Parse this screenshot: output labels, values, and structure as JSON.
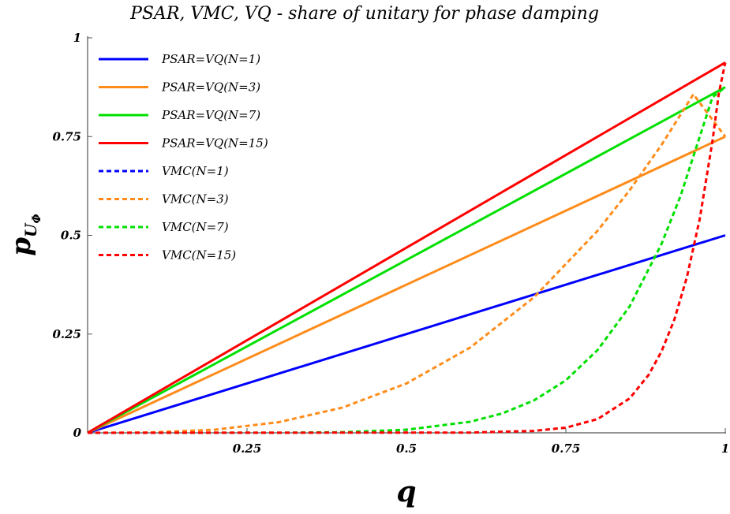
{
  "chart_data": {
    "type": "line",
    "title": "PSAR, VMC, VQ - share of unitary for phase damping",
    "xlabel": "q",
    "ylabel": "p",
    "ylabel_subscript": "U",
    "ylabel_subsubscript": "Φ",
    "xlim": [
      0,
      1
    ],
    "ylim": [
      0,
      1
    ],
    "x_ticks": [
      {
        "value": 0.25,
        "label": "0.25"
      },
      {
        "value": 0.5,
        "label": "0.5"
      },
      {
        "value": 0.75,
        "label": "0.75"
      },
      {
        "value": 1,
        "label": "1"
      }
    ],
    "y_ticks": [
      {
        "value": 0,
        "label": "0"
      },
      {
        "value": 0.25,
        "label": "0.25"
      },
      {
        "value": 0.5,
        "label": "0.5"
      },
      {
        "value": 0.75,
        "label": "0.75"
      },
      {
        "value": 1,
        "label": "1"
      }
    ],
    "legend_position": "top-left",
    "grid": false,
    "series": [
      {
        "name": "PSAR=VQ(N=1)",
        "style": "solid",
        "color": "#0000ff",
        "x": [
          0,
          1
        ],
        "y": [
          0,
          0.5
        ]
      },
      {
        "name": "PSAR=VQ(N=3)",
        "style": "solid",
        "color": "#ff8c1a",
        "x": [
          0,
          1
        ],
        "y": [
          0,
          0.75
        ]
      },
      {
        "name": "PSAR=VQ(N=7)",
        "style": "solid",
        "color": "#00e000",
        "x": [
          0,
          1
        ],
        "y": [
          0,
          0.875
        ]
      },
      {
        "name": "PSAR=VQ(N=15)",
        "style": "solid",
        "color": "#ff0000",
        "x": [
          0,
          1
        ],
        "y": [
          0,
          0.9375
        ]
      },
      {
        "name": "VMC(N=1)",
        "style": "dashed",
        "color": "#0000ff",
        "x": [],
        "y": []
      },
      {
        "name": "VMC(N=3)",
        "style": "dashed",
        "color": "#ff8c1a",
        "x": [
          0,
          0.1,
          0.2,
          0.3,
          0.4,
          0.5,
          0.6,
          0.7,
          0.8,
          0.85,
          0.9,
          0.95,
          1
        ],
        "y": [
          0,
          0.001,
          0.008,
          0.027,
          0.064,
          0.125,
          0.216,
          0.343,
          0.512,
          0.614,
          0.729,
          0.857,
          0.75
        ]
      },
      {
        "name": "VMC(N=7)",
        "style": "dashed",
        "color": "#00e000",
        "x": [
          0,
          0.3,
          0.4,
          0.5,
          0.6,
          0.65,
          0.7,
          0.75,
          0.8,
          0.85,
          0.9,
          0.93,
          0.96,
          0.98,
          1
        ],
        "y": [
          0,
          0.0002,
          0.0016,
          0.0078,
          0.028,
          0.049,
          0.082,
          0.133,
          0.21,
          0.32,
          0.478,
          0.6,
          0.75,
          0.85,
          0.875
        ]
      },
      {
        "name": "VMC(N=15)",
        "style": "dashed",
        "color": "#ff0000",
        "x": [
          0,
          0.6,
          0.7,
          0.75,
          0.8,
          0.85,
          0.88,
          0.9,
          0.92,
          0.94,
          0.96,
          0.98,
          0.99,
          1
        ],
        "y": [
          0,
          0.0005,
          0.0047,
          0.013,
          0.035,
          0.087,
          0.147,
          0.206,
          0.286,
          0.395,
          0.542,
          0.739,
          0.86,
          0.9375
        ]
      }
    ]
  }
}
